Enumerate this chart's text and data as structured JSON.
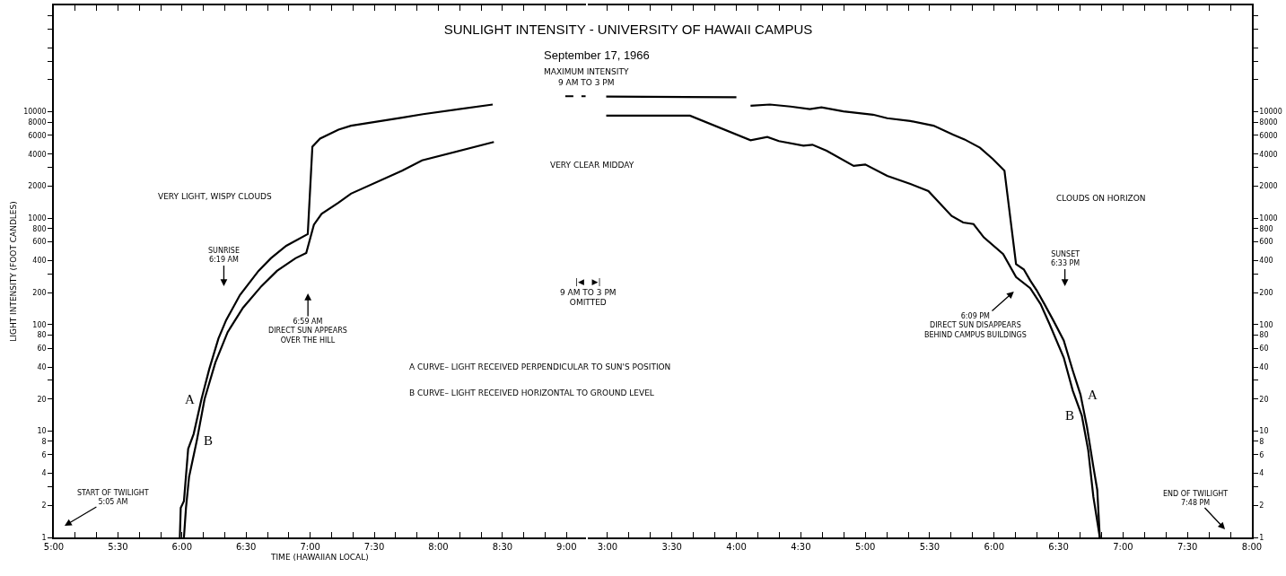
{
  "chart_data": [
    {
      "type": "line",
      "xlabel": "TIME (HAWAIIAN LOCAL)",
      "ylabel": "LIGHT INTENSITY (FOOT CANDLES)",
      "log": true,
      "grid": false,
      "legend": false,
      "marker": "none",
      "xlim": [
        5,
        9.15
      ],
      "ylim": [
        1,
        100000
      ],
      "xticks": [
        {
          "value": 5,
          "label": "5:00"
        },
        {
          "value": 5.1667,
          "label": null
        },
        {
          "value": 5.3333,
          "label": null
        },
        {
          "value": 5.5,
          "label": "5:30"
        },
        {
          "value": 5.6667,
          "label": null
        },
        {
          "value": 5.8333,
          "label": null
        },
        {
          "value": 6,
          "label": "6:00"
        },
        {
          "value": 6.1667,
          "label": null
        },
        {
          "value": 6.3333,
          "label": null
        },
        {
          "value": 6.5,
          "label": "6:30"
        },
        {
          "value": 6.6667,
          "label": null
        },
        {
          "value": 6.8333,
          "label": null
        },
        {
          "value": 7,
          "label": "7:00"
        },
        {
          "value": 7.1667,
          "label": null
        },
        {
          "value": 7.3333,
          "label": null
        },
        {
          "value": 7.5,
          "label": "7:30"
        },
        {
          "value": 7.6667,
          "label": null
        },
        {
          "value": 7.8333,
          "label": null
        },
        {
          "value": 8,
          "label": "8:00"
        },
        {
          "value": 8.1667,
          "label": null
        },
        {
          "value": 8.3333,
          "label": null
        },
        {
          "value": 8.5,
          "label": "8:30"
        },
        {
          "value": 8.6667,
          "label": null
        },
        {
          "value": 8.8333,
          "label": null
        },
        {
          "value": 9,
          "label": "9:00"
        }
      ],
      "yticks": [
        1,
        2,
        {
          "value": 3,
          "label": null
        },
        4,
        6,
        8,
        10,
        20,
        {
          "value": 30,
          "label": null
        },
        40,
        60,
        80,
        100,
        200,
        {
          "value": 300,
          "label": null
        },
        400,
        600,
        800,
        1000,
        2000,
        {
          "value": 3000,
          "label": null
        },
        4000,
        6000,
        8000,
        10000,
        {
          "value": 20000,
          "label": null
        },
        {
          "value": 30000,
          "label": null
        },
        {
          "value": 40000,
          "label": null
        },
        {
          "value": 60000,
          "label": null
        },
        {
          "value": 80000,
          "label": null
        }
      ],
      "series": [
        {
          "name": "A",
          "color": "#000000",
          "line_style": "solid",
          "x": [
            5.983,
            5.99,
            6.015,
            6.048,
            6.091,
            6.152,
            6.212,
            6.284,
            6.344,
            6.452,
            6.597,
            6.693,
            6.813,
            6.981,
            7.017,
            7.077,
            7.221,
            7.318,
            7.717,
            7.88,
            8.424
          ],
          "values": [
            1,
            1.9,
            2.2,
            6.8,
            9.4,
            20,
            38,
            74,
            110,
            190,
            320,
            420,
            550,
            710,
            4700,
            5600,
            6800,
            7400,
            8800,
            9500,
            11700
          ]
        },
        {
          "name": "B",
          "color": "#000000",
          "line_style": "solid",
          "x": [
            6.015,
            6.031,
            6.055,
            6.116,
            6.176,
            6.26,
            6.356,
            6.476,
            6.62,
            6.741,
            6.885,
            6.969,
            7.029,
            7.089,
            7.221,
            7.318,
            7.717,
            7.873,
            8.433
          ],
          "values": [
            1,
            1.9,
            3.7,
            8.2,
            20,
            44,
            85,
            144,
            230,
            320,
            420,
            470,
            870,
            1100,
            1400,
            1700,
            2800,
            3500,
            5200
          ]
        },
        {
          "color": "#000000",
          "line_style": "dashed",
          "x": [
            8.99,
            9.15
          ],
          "values": [
            14000,
            14000
          ]
        }
      ],
      "annotations": [
        "SUNRISE\n6:19 AM",
        "6:59 AM\nDIRECT SUN APPEARS\nOVER THE HILL",
        "START OF TWILIGHT\n5:05 AM",
        "MAXIMUM INTENSITY\n9 AM TO 3 PM",
        "VERY CLEAR MIDDAY",
        "|◀   ▶|\n9 AM TO 3 PM\nOMITTED",
        "VERY LIGHT, WISPY CLOUDS",
        "A CURVE– LIGHT RECEIVED PERPENDICULAR TO SUN'S POSITION",
        "B CURVE– LIGHT RECEIVED HORIZONTAL TO GROUND LEVEL"
      ]
    },
    {
      "type": "line",
      "title": "SUNLIGHT INTENSITY - UNIVERSITY OF HAWAII CAMPUS",
      "subtitle": "September 17, 1966",
      "log": true,
      "grid": false,
      "legend": false,
      "marker": "none",
      "xlim": [
        2.85,
        8
      ],
      "ylim": [
        1,
        100000
      ],
      "xticks": [
        {
          "value": 3,
          "label": "3:00"
        },
        {
          "value": 3.1667,
          "label": null
        },
        {
          "value": 3.3333,
          "label": null
        },
        {
          "value": 3.5,
          "label": "3:30"
        },
        {
          "value": 3.6667,
          "label": null
        },
        {
          "value": 3.8333,
          "label": null
        },
        {
          "value": 4,
          "label": "4:00"
        },
        {
          "value": 4.1667,
          "label": null
        },
        {
          "value": 4.3333,
          "label": null
        },
        {
          "value": 4.5,
          "label": "4:30"
        },
        {
          "value": 4.6667,
          "label": null
        },
        {
          "value": 4.8333,
          "label": null
        },
        {
          "value": 5,
          "label": "5:00"
        },
        {
          "value": 5.1667,
          "label": null
        },
        {
          "value": 5.3333,
          "label": null
        },
        {
          "value": 5.5,
          "label": "5:30"
        },
        {
          "value": 5.6667,
          "label": null
        },
        {
          "value": 5.8333,
          "label": null
        },
        {
          "value": 6,
          "label": "6:00"
        },
        {
          "value": 6.1667,
          "label": null
        },
        {
          "value": 6.3333,
          "label": null
        },
        {
          "value": 6.5,
          "label": "6:30"
        },
        {
          "value": 6.6667,
          "label": null
        },
        {
          "value": 6.8333,
          "label": null
        },
        {
          "value": 7,
          "label": "7:00"
        },
        {
          "value": 7.1667,
          "label": null
        },
        {
          "value": 7.3333,
          "label": null
        },
        {
          "value": 7.5,
          "label": "7:30"
        },
        {
          "value": 7.6667,
          "label": null
        },
        {
          "value": 7.8333,
          "label": null
        },
        {
          "value": 8,
          "label": "8:00"
        }
      ],
      "yticks": [
        1,
        2,
        {
          "value": 3,
          "label": null
        },
        4,
        6,
        8,
        10,
        20,
        {
          "value": 30,
          "label": null
        },
        40,
        60,
        80,
        100,
        200,
        {
          "value": 300,
          "label": null
        },
        400,
        600,
        800,
        1000,
        2000,
        {
          "value": 3000,
          "label": null
        },
        4000,
        6000,
        8000,
        10000,
        {
          "value": 20000,
          "label": null
        },
        {
          "value": 30000,
          "label": null
        },
        {
          "value": 40000,
          "label": null
        },
        {
          "value": 60000,
          "label": null
        },
        {
          "value": 80000,
          "label": null
        }
      ],
      "series": [
        {
          "name": "A",
          "color": "#000000",
          "line_style": "solid",
          "x": [
            4.11,
            4.26,
            4.42,
            4.57,
            4.66,
            4.83,
            5.06,
            5.17,
            5.35,
            5.53,
            5.68,
            5.77,
            5.89,
            5.99,
            6.08,
            6.17,
            6.23,
            6.28,
            6.33,
            6.39,
            6.46,
            6.54,
            6.61,
            6.67,
            6.72,
            6.77,
            6.8,
            6.82
          ],
          "values": [
            11400,
            11700,
            11200,
            10600,
            11000,
            10100,
            9400,
            8700,
            8200,
            7400,
            6100,
            5500,
            4600,
            3600,
            2800,
            370,
            330,
            260,
            210,
            156,
            109,
            71,
            37,
            22,
            11,
            4.6,
            2.8,
            1
          ]
        },
        {
          "name": "B",
          "color": "#000000",
          "line_style": "solid",
          "x": [
            2.99,
            3.64,
            4.11,
            4.24,
            4.33,
            4.52,
            4.59,
            4.7,
            4.91,
            5.0,
            5.17,
            5.35,
            5.49,
            5.67,
            5.76,
            5.84,
            5.92,
            6.07,
            6.17,
            6.28,
            6.36,
            6.43,
            6.54,
            6.61,
            6.68,
            6.73,
            6.77,
            6.82
          ],
          "values": [
            9200,
            9200,
            5400,
            5800,
            5300,
            4800,
            4900,
            4300,
            3100,
            3200,
            2500,
            2100,
            1800,
            1050,
            910,
            880,
            660,
            460,
            280,
            220,
            156,
            101,
            49,
            24,
            14,
            6.6,
            2.4,
            1
          ]
        },
        {
          "color": "#000000",
          "line_style": "solid",
          "x": [
            2.99,
            4.0
          ],
          "values": [
            13900,
            13700
          ]
        }
      ],
      "annotations": [
        "SUNSET\n6:33 PM",
        "6:09 PM\nDIRECT SUN DISAPPEARS\nBEHIND CAMPUS BUILDINGS",
        "END OF TWILIGHT\n7:48 PM",
        "CLOUDS ON HORIZON"
      ]
    }
  ]
}
